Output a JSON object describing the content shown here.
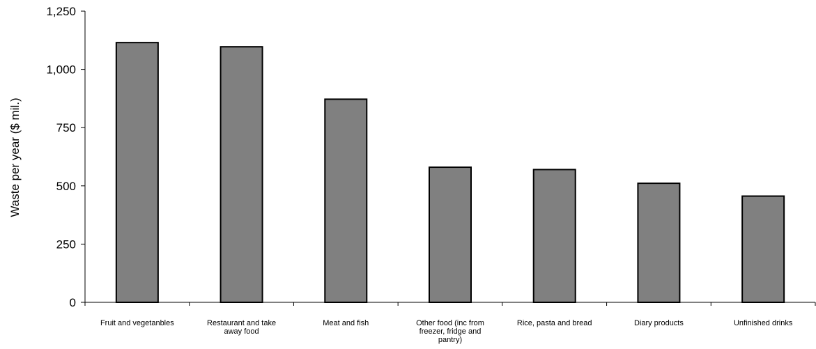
{
  "chart_data": {
    "type": "bar",
    "title": "",
    "xlabel": "",
    "ylabel": "Waste per year ($ mil.)",
    "ylim": [
      0,
      1250
    ],
    "yticks": [
      0,
      250,
      500,
      750,
      1000,
      1250
    ],
    "ytick_labels": [
      "0",
      "250",
      "500",
      "750",
      "1,000",
      "1,250"
    ],
    "grid": false,
    "categories": [
      [
        "Fruit and vegetanbles"
      ],
      [
        "Restaurant and take",
        "away food"
      ],
      [
        "Meat and fish"
      ],
      [
        "Other food (inc from",
        "freezer, fridge and",
        "pantry)"
      ],
      [
        "Rice, pasta and bread"
      ],
      [
        "Diary products"
      ],
      [
        "Unfinished drinks"
      ]
    ],
    "values": [
      1115,
      1097,
      872,
      580,
      570,
      511,
      456
    ],
    "colors": {
      "bar": "#808080",
      "edge": "#000000"
    }
  }
}
